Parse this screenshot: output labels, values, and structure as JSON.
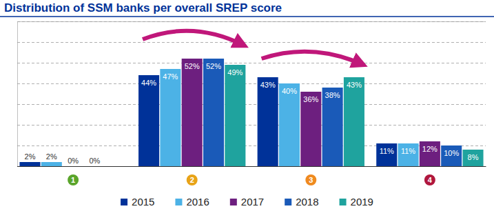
{
  "chart_data": {
    "type": "bar",
    "title": "Distribution of SSM banks per overall SREP score",
    "categories": [
      "1",
      "2",
      "3",
      "4"
    ],
    "series": [
      {
        "name": "2015",
        "color": "#003299",
        "values": [
          2,
          44,
          43,
          11
        ],
        "value_labels": [
          "2%",
          "44%",
          "43%",
          "11%"
        ]
      },
      {
        "name": "2016",
        "color": "#4cb2e6",
        "values": [
          2,
          47,
          40,
          11
        ],
        "value_labels": [
          "2%",
          "47%",
          "40%",
          "11%"
        ]
      },
      {
        "name": "2017",
        "color": "#6d1f7f",
        "values": [
          0,
          52,
          36,
          12
        ],
        "value_labels": [
          "0%",
          "52%",
          "36%",
          "12%"
        ]
      },
      {
        "name": "2018",
        "color": "#1a5ab8",
        "values": [
          0,
          52,
          38,
          10
        ],
        "value_labels": [
          "0%",
          "52%",
          "38%",
          "10%"
        ]
      },
      {
        "name": "2019",
        "color": "#1fa39e",
        "values": [
          null,
          49,
          43,
          8
        ],
        "value_labels": [
          null,
          "49%",
          "43%",
          "8%"
        ]
      }
    ],
    "ylim": [
      0,
      70
    ],
    "yticks": [
      0,
      10,
      20,
      30,
      40,
      50,
      60,
      70
    ],
    "grid": true,
    "legend": "bottom",
    "data_labels": true,
    "tick_labels": "x"
  }
}
